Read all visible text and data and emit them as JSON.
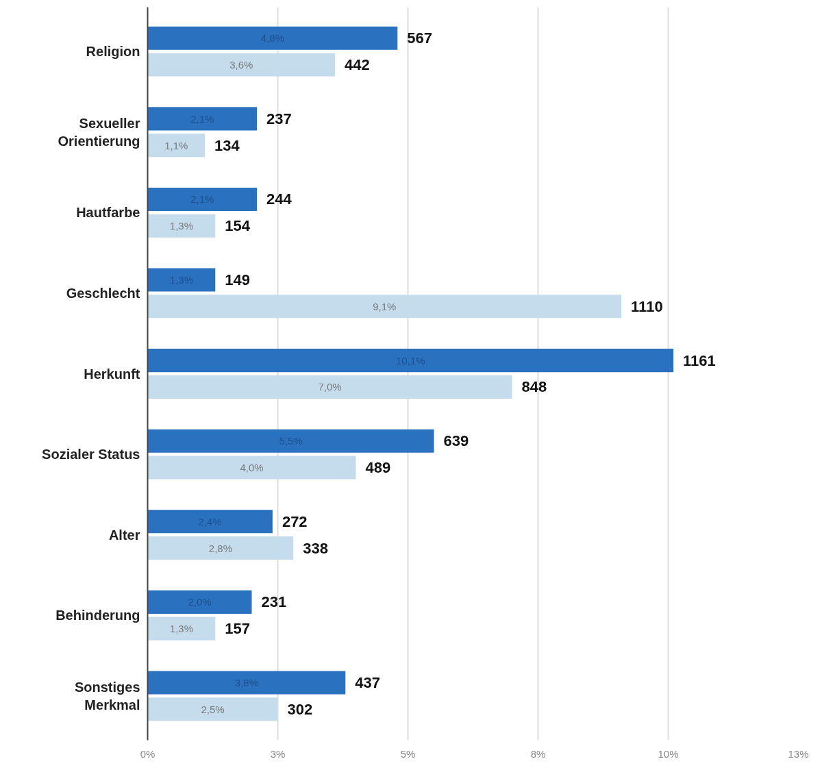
{
  "chart_data": {
    "type": "bar",
    "orientation": "horizontal",
    "categories": [
      "Religion",
      "Sexueller Orientierung",
      "Hautfarbe",
      "Geschlecht",
      "Herkunft",
      "Sozialer Status",
      "Alter",
      "Behinderung",
      "Sonstiges Merkmal"
    ],
    "series": [
      {
        "color": "#2a72c0",
        "values": [
          4.8,
          2.1,
          2.1,
          1.3,
          10.1,
          5.5,
          2.4,
          2.0,
          3.8
        ],
        "value_labels": [
          "4,8%",
          "2,1%",
          "2,1%",
          "1,3%",
          "10,1%",
          "5,5%",
          "2,4%",
          "2,0%",
          "3,8%"
        ]
      },
      {
        "color": "#c5dcec",
        "values": [
          3.6,
          1.1,
          1.3,
          9.1,
          7.0,
          4.0,
          2.8,
          1.3,
          2.5
        ],
        "value_labels": [
          "3,6%",
          "1,1%",
          "1,3%",
          "9,1%",
          "7,0%",
          "4,0%",
          "2,8%",
          "1,3%",
          "2,5%"
        ]
      }
    ],
    "annotations": [
      {
        "text": "567",
        "x": 4.8,
        "y": "Religion"
      },
      {
        "text": "237",
        "x": 2.1,
        "y": "Sexueller Orientierung"
      },
      {
        "text": "244",
        "x": 2.1,
        "y": "Hautfarbe"
      },
      {
        "text": "149",
        "x": 1.3,
        "y": "Geschlecht"
      },
      {
        "text": "1161",
        "x": 10.1,
        "y": "Herkunft"
      },
      {
        "text": "639",
        "x": 5.5,
        "y": "Sozialer Status"
      },
      {
        "text": "272",
        "x": 2.4,
        "y": "Alter"
      },
      {
        "text": "231",
        "x": 2.0,
        "y": "Behinderung"
      },
      {
        "text": "437",
        "x": 3.8,
        "y": "Sonstiges Merkmal"
      },
      {
        "text": "442",
        "x": 3.6,
        "y": "Religion"
      },
      {
        "text": "134",
        "x": 1.1,
        "y": "Sexueller Orientierung"
      },
      {
        "text": "154",
        "x": 1.3,
        "y": "Hautfarbe"
      },
      {
        "text": "1110",
        "x": 9.1,
        "y": "Geschlecht"
      },
      {
        "text": "848",
        "x": 7.0,
        "y": "Herkunft"
      },
      {
        "text": "489",
        "x": 4.0,
        "y": "Sozialer Status"
      },
      {
        "text": "338",
        "x": 2.8,
        "y": "Alter"
      },
      {
        "text": "157",
        "x": 1.3,
        "y": "Behinderung"
      },
      {
        "text": "302",
        "x": 2.5,
        "y": "Sonstiges Merkmal"
      }
    ],
    "xlim": [
      0,
      12.5
    ],
    "xticks": [
      {
        "value": 0,
        "label": "0%"
      },
      {
        "value": 2.5,
        "label": "3%"
      },
      {
        "value": 5,
        "label": "5%"
      },
      {
        "value": 7.5,
        "label": "8%"
      },
      {
        "value": 10,
        "label": "10%"
      },
      {
        "value": 12.5,
        "label": "13%"
      }
    ],
    "grid": "x"
  }
}
